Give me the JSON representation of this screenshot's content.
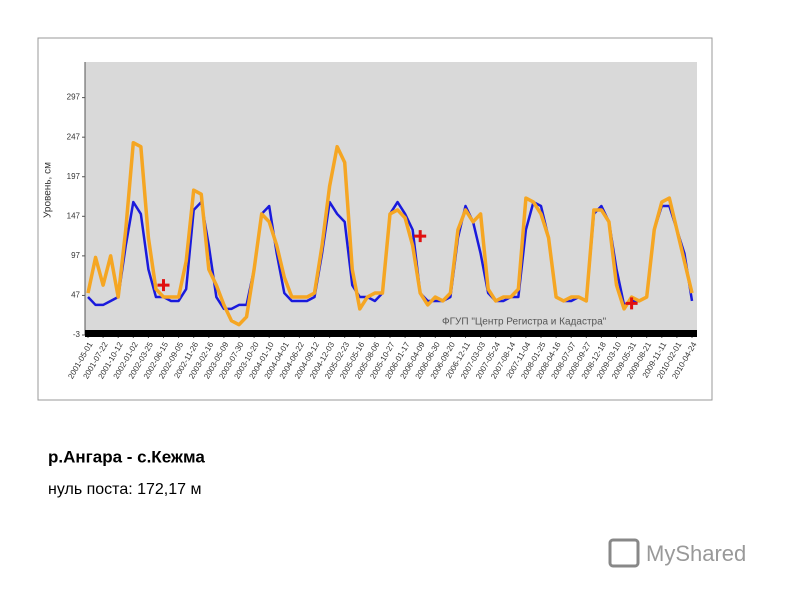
{
  "chart_data": {
    "type": "line",
    "y_label": "Уровень, см",
    "annotation": "ФГУП \"Центр Регистра и Кадастра\"",
    "ylim": [
      -3,
      342
    ],
    "yticks": [
      -3,
      47,
      97,
      147,
      197,
      247,
      297
    ],
    "categories": [
      "2001-05-01",
      null,
      "2001-07-22",
      null,
      "2001-10-12",
      null,
      "2002-01-02",
      null,
      "2002-03-25",
      null,
      "2002-06-15",
      null,
      "2002-09-05",
      null,
      "2002-11-26",
      null,
      "2003-02-16",
      null,
      "2003-05-09",
      null,
      "2003-07-30",
      null,
      "2003-10-20",
      null,
      "2004-01-10",
      null,
      "2004-04-01",
      null,
      "2004-06-22",
      null,
      "2004-09-12",
      null,
      "2004-12-03",
      null,
      "2005-02-23",
      null,
      "2005-05-16",
      null,
      "2005-08-06",
      null,
      "2005-10-27",
      null,
      "2006-01-17",
      null,
      "2006-04-09",
      null,
      "2006-06-30",
      null,
      "2006-09-20",
      null,
      "2006-12-11",
      null,
      "2007-03-03",
      null,
      "2007-05-24",
      null,
      "2007-08-14",
      null,
      "2007-11-04",
      null,
      "2008-01-25",
      null,
      "2008-04-16",
      null,
      "2008-07-07",
      null,
      "2008-09-27",
      null,
      "2008-12-18",
      null,
      "2009-03-10",
      null,
      "2009-05-31",
      null,
      "2009-08-21",
      null,
      "2009-11-11",
      null,
      "2010-02-01",
      null,
      "2010-04-24"
    ],
    "series": [
      {
        "color": "#1a1adc",
        "values": [
          45,
          35,
          35,
          40,
          45,
          110,
          165,
          150,
          80,
          45,
          45,
          40,
          40,
          55,
          155,
          165,
          110,
          45,
          30,
          30,
          35,
          35,
          80,
          150,
          160,
          100,
          50,
          40,
          40,
          40,
          45,
          100,
          165,
          150,
          140,
          60,
          45,
          45,
          40,
          50,
          150,
          165,
          150,
          130,
          50,
          40,
          40,
          40,
          45,
          120,
          160,
          140,
          100,
          50,
          40,
          40,
          45,
          45,
          130,
          165,
          160,
          120,
          45,
          40,
          40,
          45,
          40,
          150,
          160,
          140,
          80,
          35,
          40,
          40,
          45,
          130,
          160,
          160,
          130,
          100,
          40
        ]
      },
      {
        "color": "#f5a623",
        "values": [
          50,
          95,
          60,
          97,
          45,
          130,
          240,
          235,
          120,
          55,
          45,
          45,
          45,
          90,
          180,
          175,
          80,
          60,
          35,
          15,
          10,
          20,
          80,
          150,
          140,
          110,
          70,
          45,
          45,
          45,
          50,
          110,
          185,
          235,
          215,
          80,
          30,
          45,
          50,
          50,
          150,
          155,
          145,
          110,
          50,
          35,
          45,
          40,
          50,
          130,
          155,
          140,
          150,
          55,
          40,
          45,
          45,
          55,
          170,
          165,
          150,
          120,
          45,
          40,
          45,
          45,
          40,
          155,
          155,
          140,
          60,
          30,
          45,
          40,
          45,
          130,
          165,
          170,
          130,
          90,
          50
        ]
      }
    ],
    "markers": {
      "color": "#e01010",
      "categories": [
        "2002-06-15",
        "2006-04-09",
        "2009-05-31"
      ],
      "values": [
        60,
        122,
        37
      ]
    }
  },
  "caption": {
    "title": "р.Ангара - с.Кежма",
    "subtitle": "нуль поста: 172,17 м"
  },
  "watermark": "MyShared"
}
